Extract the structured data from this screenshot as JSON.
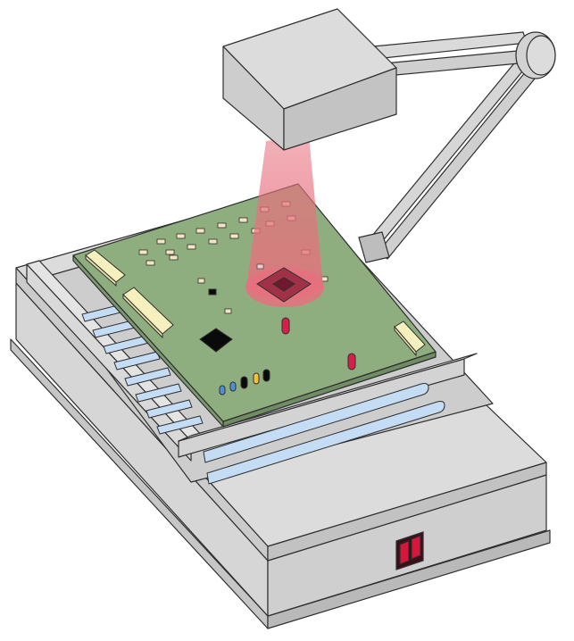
{
  "colors": {
    "casing": "#d3d3d3",
    "casing_dark": "#a9a9a9",
    "outline": "#2f2f2f",
    "pcb": "#8fae80",
    "connector": "#f6efbe",
    "tube": "#c4ddf4",
    "beam": "#e8707e",
    "cpu": "#a03248",
    "switch": "#d6163a",
    "capacitor_red": "#d81e4a",
    "capacitor_blue": "#4f8fd6",
    "capacitor_yellow": "#f3c23a",
    "chip": "#0a0a0a"
  }
}
